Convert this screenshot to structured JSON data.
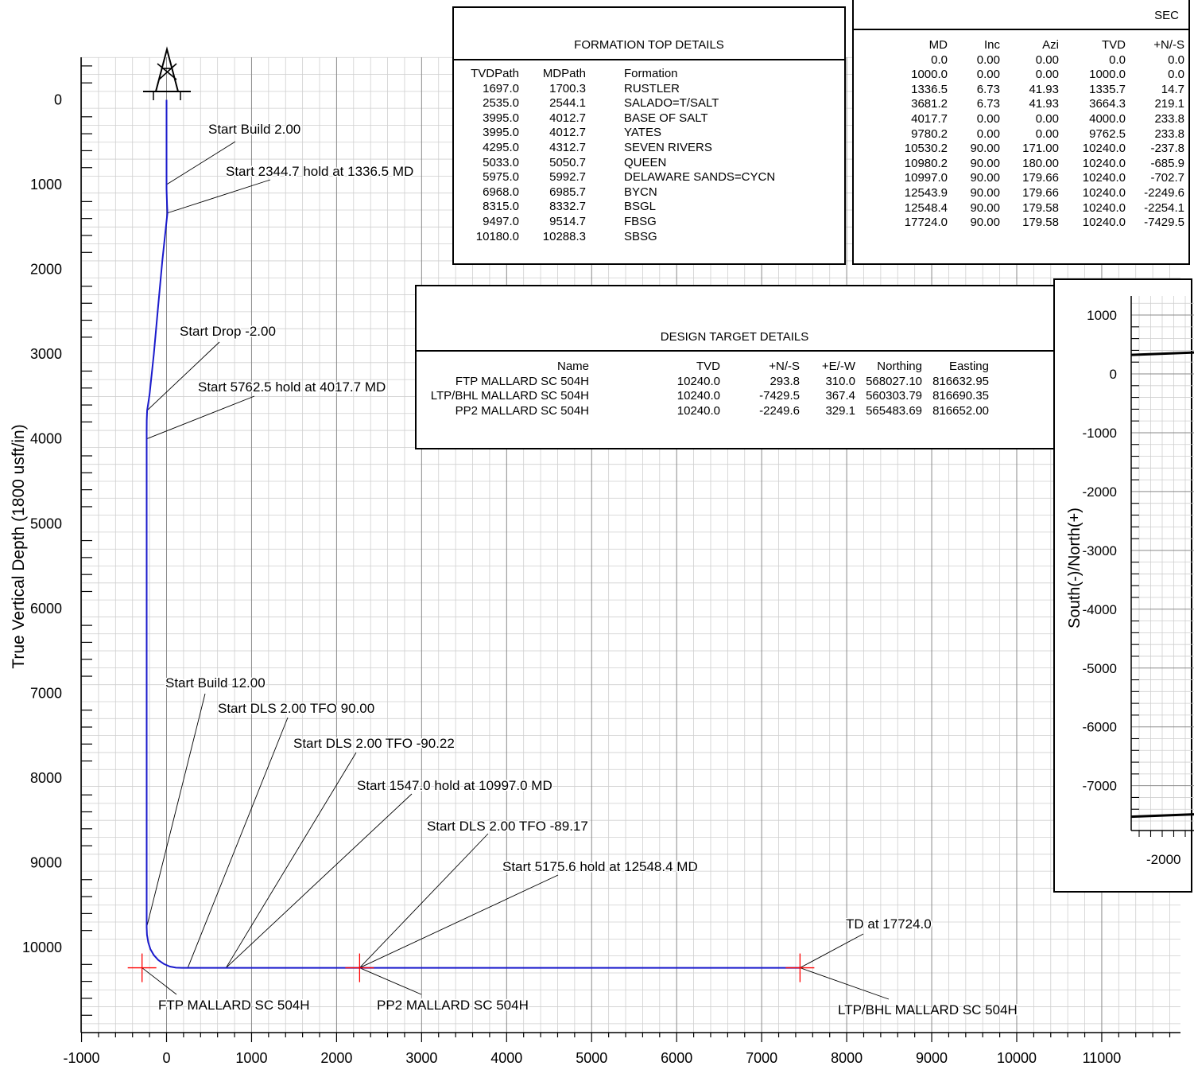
{
  "chart_data": {
    "type": "line",
    "title": "",
    "ylabel": "True Vertical Depth (1800 usft/in)",
    "xlabel": "",
    "xlim": [
      -1000,
      12000
    ],
    "ylim": [
      11000,
      -500
    ],
    "y_inverted": true,
    "grid": true,
    "xticks": [
      "-1000",
      "0",
      "1000",
      "2000",
      "3000",
      "4000",
      "5000",
      "6000",
      "7000",
      "8000",
      "9000",
      "10000",
      "11000"
    ],
    "yticks": [
      "0",
      "1000",
      "2000",
      "3000",
      "4000",
      "5000",
      "6000",
      "7000",
      "8000",
      "9000",
      "10000"
    ],
    "series": [
      {
        "color": "#1a1acc",
        "x": [
          0,
          0,
          0,
          2,
          4,
          6,
          8,
          10,
          -50,
          -100,
          -150,
          -200,
          -228,
          -233,
          -234,
          -234,
          -230,
          -215,
          -190,
          -150,
          -95,
          -30,
          40,
          110,
          180,
          240,
          250,
          300,
          500,
          700,
          1000,
          2271,
          3000,
          5000,
          7000,
          7451
        ],
        "y": [
          0,
          1000,
          1050,
          1110,
          1170,
          1230,
          1290,
          1335,
          1900,
          2450,
          3000,
          3480,
          3664,
          3780,
          3900,
          9762,
          9850,
          9940,
          10020,
          10090,
          10150,
          10195,
          10225,
          10238,
          10240,
          10240,
          10240,
          10240,
          10240,
          10240,
          10240,
          10240,
          10240,
          10240,
          10240,
          10240
        ]
      }
    ],
    "targets": [
      {
        "name": "FTP MALLARD SC 504H",
        "x": -288,
        "y": 10240,
        "color": "#ff0000"
      },
      {
        "name": "PP2 MALLARD SC 504H",
        "x": 2271,
        "y": 10240,
        "color": "#ff0000"
      },
      {
        "name": "LTP/BHL MALLARD SC 504H",
        "x": 7451,
        "y": 10240,
        "color": "#ff0000"
      }
    ],
    "annotations": [
      {
        "text": "Start Build 2.00",
        "x": 0,
        "y": 1000
      },
      {
        "text": "Start 2344.7 hold at 1336.5 MD",
        "x": 10,
        "y": 1335
      },
      {
        "text": "Start Drop -2.00",
        "x": -228,
        "y": 3664
      },
      {
        "text": "Start 5762.5 hold at 4017.7 MD",
        "x": -234,
        "y": 4000
      },
      {
        "text": "Start Build 12.00",
        "x": -234,
        "y": 9762
      },
      {
        "text": "Start DLS 2.00 TFO 90.00",
        "x": 250,
        "y": 10240
      },
      {
        "text": "Start DLS 2.00 TFO -90.22",
        "x": 700,
        "y": 10240
      },
      {
        "text": "Start 1547.0 hold at 10997.0 MD",
        "x": 700,
        "y": 10240
      },
      {
        "text": "Start DLS 2.00 TFO -89.17",
        "x": 2271,
        "y": 10240
      },
      {
        "text": "Start 5175.6 hold at 12548.4 MD",
        "x": 2271,
        "y": 10240
      },
      {
        "text": "TD at 17724.0",
        "x": 7451,
        "y": 10240
      }
    ]
  },
  "formation_table": {
    "title": "FORMATION TOP DETAILS",
    "headers": [
      "TVDPath",
      "MDPath",
      "Formation"
    ],
    "rows": [
      [
        "1697.0",
        "1700.3",
        "RUSTLER"
      ],
      [
        "2535.0",
        "2544.1",
        "SALADO=T/SALT"
      ],
      [
        "3995.0",
        "4012.7",
        "BASE OF SALT"
      ],
      [
        "3995.0",
        "4012.7",
        "YATES"
      ],
      [
        "4295.0",
        "4312.7",
        "SEVEN RIVERS"
      ],
      [
        "5033.0",
        "5050.7",
        "QUEEN"
      ],
      [
        "5975.0",
        "5992.7",
        "DELAWARE SANDS=CYCN"
      ],
      [
        "6968.0",
        "6985.7",
        "BYCN"
      ],
      [
        "8315.0",
        "8332.7",
        "BSGL"
      ],
      [
        "9497.0",
        "9514.7",
        "FBSG"
      ],
      [
        "10180.0",
        "10288.3",
        "SBSG"
      ]
    ]
  },
  "section_table": {
    "title": "SEC",
    "headers": [
      "MD",
      "Inc",
      "Azi",
      "TVD",
      "+N/-S"
    ],
    "rows": [
      [
        "0.0",
        "0.00",
        "0.00",
        "0.0",
        "0.0"
      ],
      [
        "1000.0",
        "0.00",
        "0.00",
        "1000.0",
        "0.0"
      ],
      [
        "1336.5",
        "6.73",
        "41.93",
        "1335.7",
        "14.7"
      ],
      [
        "3681.2",
        "6.73",
        "41.93",
        "3664.3",
        "219.1"
      ],
      [
        "4017.7",
        "0.00",
        "0.00",
        "4000.0",
        "233.8"
      ],
      [
        "9780.2",
        "0.00",
        "0.00",
        "9762.5",
        "233.8"
      ],
      [
        "10530.2",
        "90.00",
        "171.00",
        "10240.0",
        "-237.8"
      ],
      [
        "10980.2",
        "90.00",
        "180.00",
        "10240.0",
        "-685.9"
      ],
      [
        "10997.0",
        "90.00",
        "179.66",
        "10240.0",
        "-702.7"
      ],
      [
        "12543.9",
        "90.00",
        "179.66",
        "10240.0",
        "-2249.6"
      ],
      [
        "12548.4",
        "90.00",
        "179.58",
        "10240.0",
        "-2254.1"
      ],
      [
        "17724.0",
        "90.00",
        "179.58",
        "10240.0",
        "-7429.5"
      ]
    ]
  },
  "target_table": {
    "title": "DESIGN TARGET DETAILS",
    "headers": [
      "Name",
      "TVD",
      "+N/-S",
      "+E/-W",
      "Northing",
      "Easting"
    ],
    "rows": [
      [
        "FTP MALLARD SC 504H",
        "10240.0",
        "293.8",
        "310.0",
        "568027.10",
        "816632.95"
      ],
      [
        "LTP/BHL MALLARD SC 504H",
        "10240.0",
        "-7429.5",
        "367.4",
        "560303.79",
        "816690.35"
      ],
      [
        "PP2 MALLARD SC 504H",
        "10240.0",
        "-2249.6",
        "329.1",
        "565483.69",
        "816652.00"
      ]
    ]
  },
  "plan_view": {
    "ylabel": "South(-)/North(+)",
    "yticks": [
      "1000",
      "0",
      "-1000",
      "-2000",
      "-3000",
      "-4000",
      "-5000",
      "-6000",
      "-7000"
    ],
    "xticks": [
      "-2000"
    ],
    "lines": [
      {
        "y": 350,
        "color": "#000000"
      },
      {
        "y": -7500,
        "color": "#000000"
      }
    ]
  }
}
